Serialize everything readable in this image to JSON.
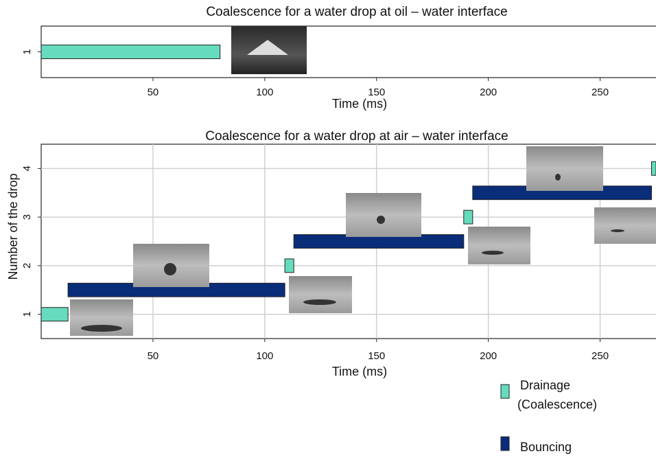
{
  "ylabel": "Number of the drop",
  "chart_data": [
    {
      "type": "gantt",
      "title": "Coalescence  for a water drop at oil – water interface",
      "xlabel": "Time (ms)",
      "xlim": [
        0,
        275
      ],
      "xticks": [
        50,
        100,
        150,
        200,
        250
      ],
      "ylim": [
        0.5,
        1.5
      ],
      "yticks": [
        1
      ],
      "grid": false,
      "series": [
        {
          "color": "#66dbbd",
          "bars": [
            {
              "y": 1,
              "start": 0,
              "end": 80
            }
          ]
        }
      ]
    },
    {
      "type": "gantt",
      "title": "Coalescence  for a water drop at air – water interface",
      "xlabel": "Time (ms)",
      "xlim": [
        0,
        275
      ],
      "xticks": [
        50,
        100,
        150,
        200,
        250
      ],
      "ylim": [
        0.5,
        4.5
      ],
      "yticks": [
        1,
        2,
        3,
        4
      ],
      "grid": true,
      "series": [
        {
          "name": "Drainage (Coalescence)",
          "color": "#66dbbd",
          "bars": [
            {
              "y": 1,
              "start": 0,
              "end": 12
            },
            {
              "y": 2,
              "start": 109,
              "end": 113
            },
            {
              "y": 3,
              "start": 189,
              "end": 193
            },
            {
              "y": 4,
              "start": 273,
              "end": 280
            }
          ]
        },
        {
          "name": "Bouncing",
          "color": "#0a2d7a",
          "bars": [
            {
              "y": 1.5,
              "start": 12,
              "end": 109
            },
            {
              "y": 2.5,
              "start": 113,
              "end": 189
            },
            {
              "y": 3.5,
              "start": 193,
              "end": 273
            }
          ]
        }
      ]
    }
  ]
}
